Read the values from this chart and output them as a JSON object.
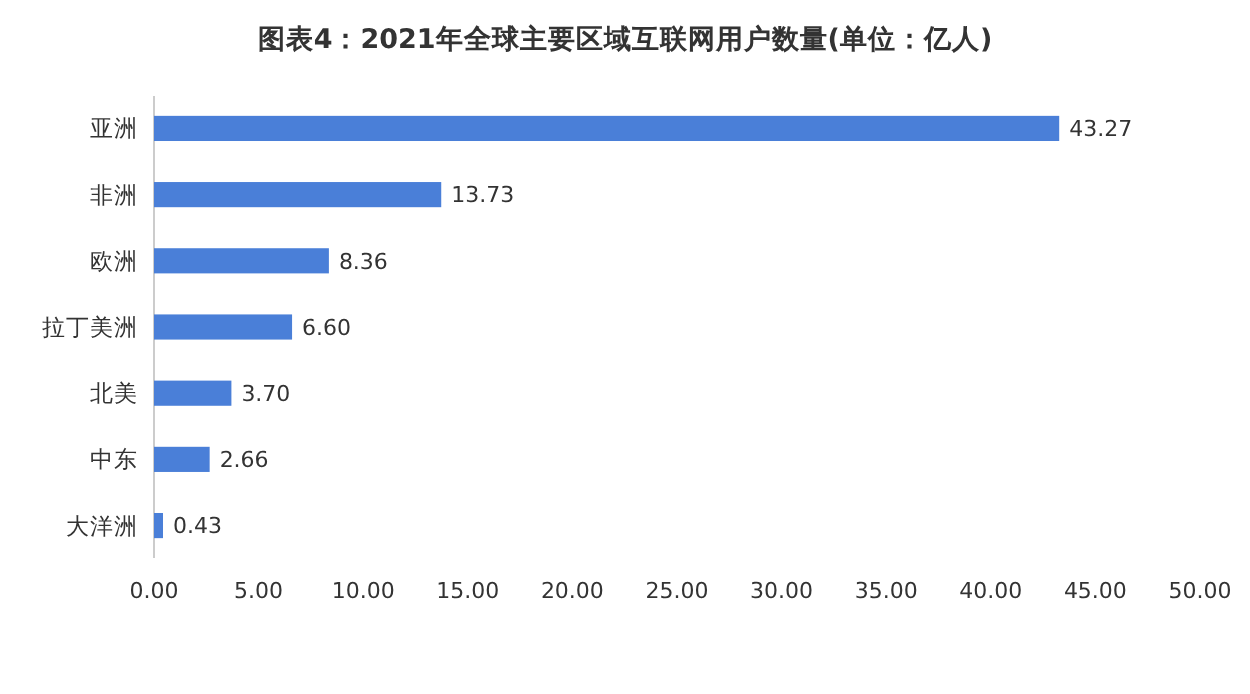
{
  "chart_data": {
    "type": "bar",
    "orientation": "horizontal",
    "title": "图表4：2021年全球主要区域互联网用户数量(单位：亿人)",
    "categories": [
      "亚洲",
      "非洲",
      "欧洲",
      "拉丁美洲",
      "北美",
      "中东",
      "大洋洲"
    ],
    "values": [
      43.27,
      13.73,
      8.36,
      6.6,
      3.7,
      2.66,
      0.43
    ],
    "value_labels": [
      "43.27",
      "13.73",
      "8.36",
      "6.60",
      "3.70",
      "2.66",
      "0.43"
    ],
    "color": "#4a7fd8",
    "xlim": [
      0,
      50
    ],
    "xticks": [
      {
        "value": 0,
        "label": "0.00"
      },
      {
        "value": 5,
        "label": "5.00"
      },
      {
        "value": 10,
        "label": "10.00"
      },
      {
        "value": 15,
        "label": "15.00"
      },
      {
        "value": 20,
        "label": "20.00"
      },
      {
        "value": 25,
        "label": "25.00"
      },
      {
        "value": 30,
        "label": "30.00"
      },
      {
        "value": 35,
        "label": "35.00"
      },
      {
        "value": 40,
        "label": "40.00"
      },
      {
        "value": 45,
        "label": "45.00"
      },
      {
        "value": 50,
        "label": "50.00"
      }
    ],
    "grid": false
  }
}
